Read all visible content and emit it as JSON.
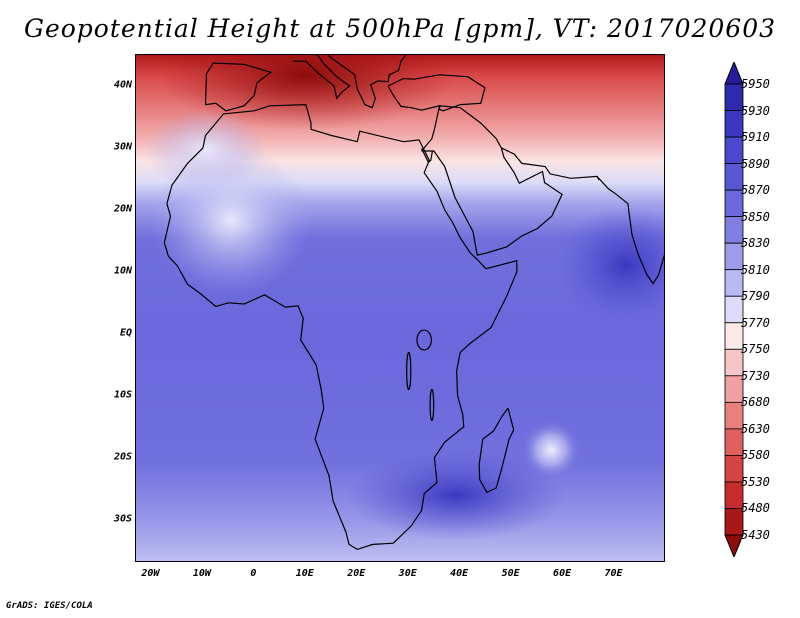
{
  "title": "Geopotential Height at 500hPa [gpm], VT: 2017020603",
  "footer": "GrADS: IGES/COLA",
  "map": {
    "lon_range": [
      -23,
      80
    ],
    "lat_range": [
      -37,
      45
    ],
    "y_ticks": [
      {
        "label": "40N",
        "lat": 40
      },
      {
        "label": "30N",
        "lat": 30
      },
      {
        "label": "20N",
        "lat": 20
      },
      {
        "label": "10N",
        "lat": 10
      },
      {
        "label": "EQ",
        "lat": 0
      },
      {
        "label": "10S",
        "lat": -10
      },
      {
        "label": "20S",
        "lat": -20
      },
      {
        "label": "30S",
        "lat": -30
      }
    ],
    "x_ticks": [
      {
        "label": "20W",
        "lon": -20
      },
      {
        "label": "10W",
        "lon": -10
      },
      {
        "label": "0",
        "lon": 0
      },
      {
        "label": "10E",
        "lon": 10
      },
      {
        "label": "20E",
        "lon": 20
      },
      {
        "label": "30E",
        "lon": 30
      },
      {
        "label": "40E",
        "lon": 40
      },
      {
        "label": "50E",
        "lon": 50
      },
      {
        "label": "60E",
        "lon": 60
      },
      {
        "label": "70E",
        "lon": 70
      }
    ]
  },
  "colorbar": {
    "levels": [
      "5950",
      "5930",
      "5910",
      "5890",
      "5870",
      "5850",
      "5830",
      "5810",
      "5790",
      "5770",
      "5750",
      "5730",
      "5680",
      "5630",
      "5580",
      "5530",
      "5480",
      "5430"
    ],
    "colors": [
      "#241c9a",
      "#2e2aae",
      "#3a38c0",
      "#4a48cc",
      "#5858d4",
      "#6a68dc",
      "#8080e2",
      "#9c9cea",
      "#babaf2",
      "#dcdcf8",
      "#fbe8e8",
      "#f6c6c6",
      "#f0a2a2",
      "#e88080",
      "#e06060",
      "#d64444",
      "#c62c2c",
      "#a81818",
      "#8c0c0c"
    ]
  }
}
